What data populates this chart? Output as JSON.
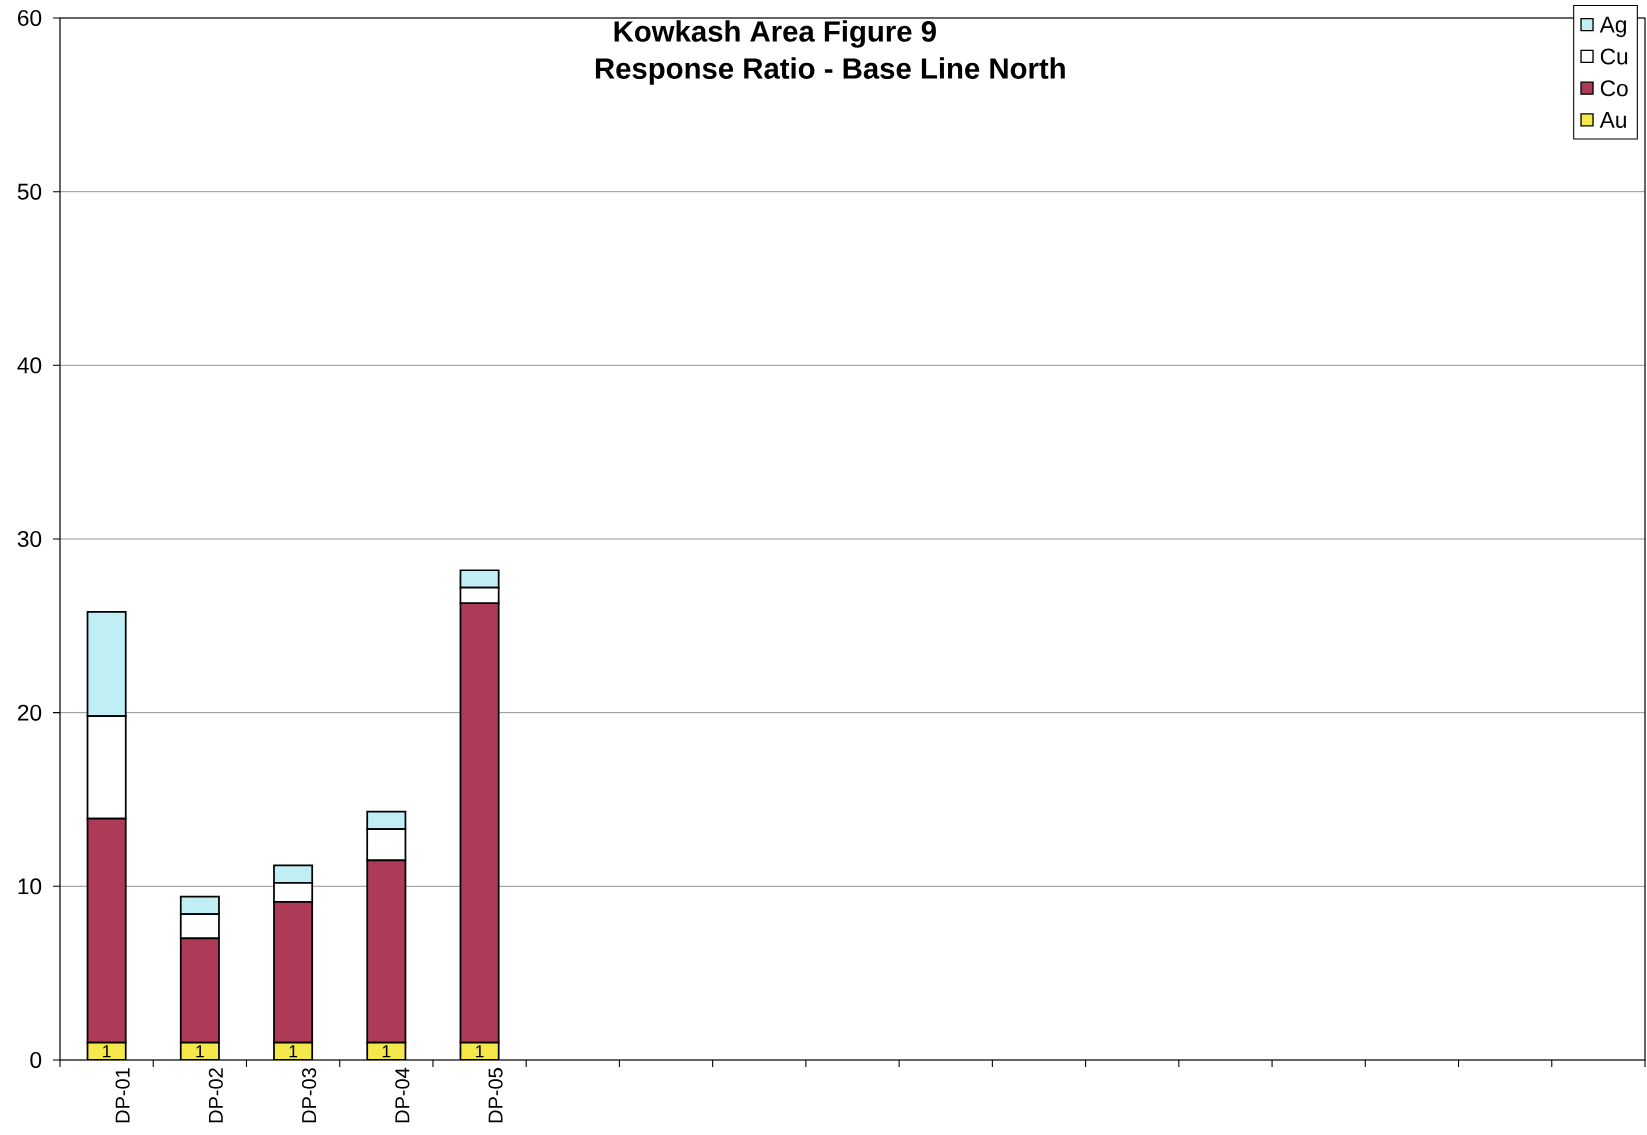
{
  "chart_data": {
    "type": "bar",
    "title": "Kowkash Area Figure 9",
    "subtitle": "Response Ratio - Base Line North",
    "categories": [
      "DP-01",
      "DP-02",
      "DP-03",
      "DP-04",
      "DP-05",
      null,
      null,
      null,
      null,
      null,
      null,
      null,
      null,
      null,
      null,
      null,
      null
    ],
    "stacked": true,
    "series": [
      {
        "name": "Au",
        "color": "#f4e84a",
        "values": [
          1,
          1,
          1,
          1,
          1,
          null,
          null,
          null,
          null,
          null,
          null,
          null,
          null,
          null,
          null,
          null,
          null
        ],
        "value_labels": [
          "1",
          "1",
          "1",
          "1",
          "1",
          null,
          null,
          null,
          null,
          null,
          null,
          null,
          null,
          null,
          null,
          null,
          null
        ]
      },
      {
        "name": "Co",
        "color": "#ad3a57",
        "values": [
          12.9,
          6.0,
          8.1,
          10.5,
          25.3,
          null,
          null,
          null,
          null,
          null,
          null,
          null,
          null,
          null,
          null,
          null,
          null
        ]
      },
      {
        "name": "Cu",
        "color": "#ffffff",
        "values": [
          5.9,
          1.4,
          1.1,
          1.8,
          0.9,
          null,
          null,
          null,
          null,
          null,
          null,
          null,
          null,
          null,
          null,
          null,
          null
        ]
      },
      {
        "name": "Ag",
        "color": "#bfeef5",
        "values": [
          6.0,
          1.0,
          1.0,
          1.0,
          1.0,
          null,
          null,
          null,
          null,
          null,
          null,
          null,
          null,
          null,
          null,
          null,
          null
        ]
      }
    ],
    "ylim": [
      0,
      60
    ],
    "yticks": [
      0,
      10,
      20,
      30,
      40,
      50,
      60
    ],
    "grid": "y",
    "legend": "top right"
  }
}
